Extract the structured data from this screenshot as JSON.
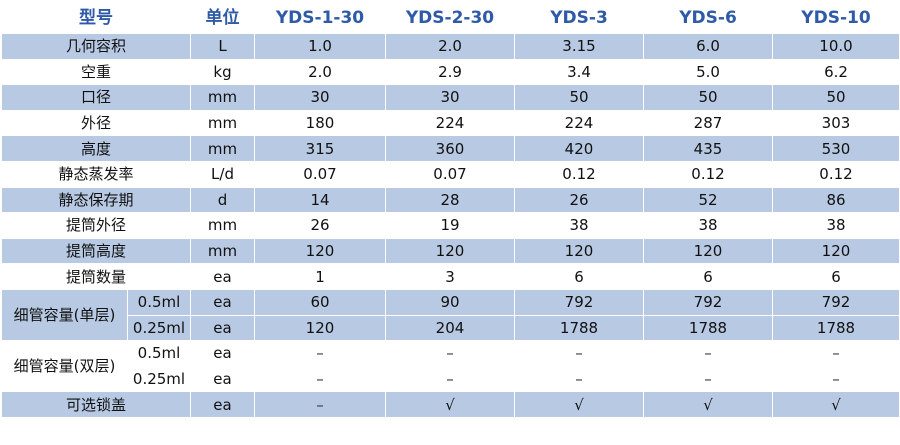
{
  "header": {
    "model": "型号",
    "unit": "单位",
    "models": [
      "YDS-1-30",
      "YDS-2-30",
      "YDS-3",
      "YDS-6",
      "YDS-10"
    ]
  },
  "rows": [
    {
      "label": "几何容积",
      "unit": "L",
      "values": [
        "1.0",
        "2.0",
        "3.15",
        "6.0",
        "10.0"
      ]
    },
    {
      "label": "空重",
      "unit": "kg",
      "values": [
        "2.0",
        "2.9",
        "3.4",
        "5.0",
        "6.2"
      ]
    },
    {
      "label": "口径",
      "unit": "mm",
      "values": [
        "30",
        "30",
        "50",
        "50",
        "50"
      ]
    },
    {
      "label": "外径",
      "unit": "mm",
      "values": [
        "180",
        "224",
        "224",
        "287",
        "303"
      ]
    },
    {
      "label": "高度",
      "unit": "mm",
      "values": [
        "315",
        "360",
        "420",
        "435",
        "530"
      ]
    },
    {
      "label": "静态蒸发率",
      "unit": "L/d",
      "values": [
        "0.07",
        "0.07",
        "0.12",
        "0.12",
        "0.12"
      ]
    },
    {
      "label": "静态保存期",
      "unit": "d",
      "values": [
        "14",
        "28",
        "26",
        "52",
        "86"
      ]
    },
    {
      "label": "提筒外径",
      "unit": "mm",
      "values": [
        "26",
        "19",
        "38",
        "38",
        "38"
      ]
    },
    {
      "label": "提筒高度",
      "unit": "mm",
      "values": [
        "120",
        "120",
        "120",
        "120",
        "120"
      ]
    },
    {
      "label": "提筒数量",
      "unit": "ea",
      "values": [
        "1",
        "3",
        "6",
        "6",
        "6"
      ]
    }
  ],
  "straw_single": {
    "label": "细管容量(单层)",
    "subrows": [
      {
        "sub": "0.5ml",
        "unit": "ea",
        "values": [
          "60",
          "90",
          "792",
          "792",
          "792"
        ]
      },
      {
        "sub": "0.25ml",
        "unit": "ea",
        "values": [
          "120",
          "204",
          "1788",
          "1788",
          "1788"
        ]
      }
    ]
  },
  "straw_double": {
    "label": "细管容量(双层)",
    "subrows": [
      {
        "sub": "0.5ml",
        "unit": "ea",
        "values": [
          "–",
          "–",
          "–",
          "–",
          "–"
        ]
      },
      {
        "sub": "0.25ml",
        "unit": "ea",
        "values": [
          "–",
          "–",
          "–",
          "–",
          "–"
        ]
      }
    ]
  },
  "lock_row": {
    "label": "可选锁盖",
    "unit": "ea",
    "values": [
      "–",
      "√",
      "√",
      "√",
      "√"
    ]
  }
}
